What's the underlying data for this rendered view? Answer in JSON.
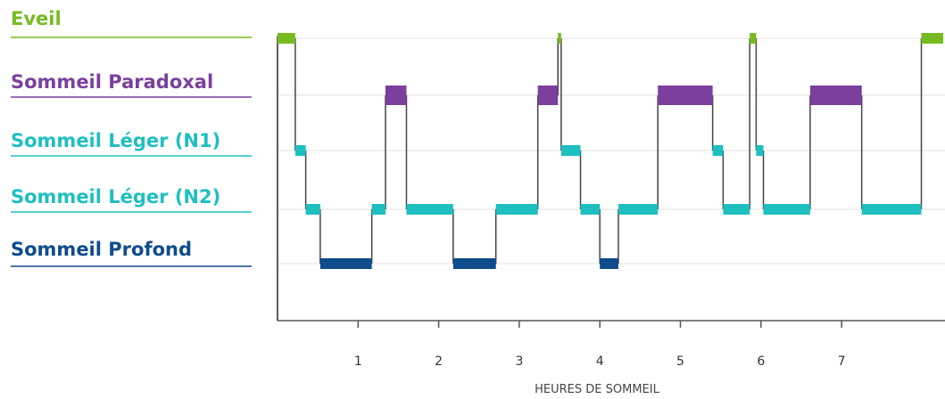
{
  "chart_data": {
    "type": "line",
    "title": "",
    "xlabel": "HEURES DE SOMMEIL",
    "ylabel": "",
    "xlim": [
      0,
      7.8
    ],
    "x_ticks": [
      "1",
      "2",
      "3",
      "4",
      "5",
      "6",
      "7"
    ],
    "grid": true,
    "stages": [
      {
        "name": "Eveil",
        "color": "#76bc21"
      },
      {
        "name": "Sommeil Paradoxal",
        "color": "#7b3f9e"
      },
      {
        "name": "Sommeil Léger (N1)",
        "color": "#1fbfc0"
      },
      {
        "name": "Sommeil Léger (N2)",
        "color": "#1fbfc0"
      },
      {
        "name": "Sommeil Profond",
        "color": "#0e4c8c"
      }
    ],
    "segments": [
      {
        "stage": 0,
        "start": 0.0,
        "end": 0.22
      },
      {
        "stage": 2,
        "start": 0.22,
        "end": 0.35
      },
      {
        "stage": 3,
        "start": 0.35,
        "end": 0.53
      },
      {
        "stage": 4,
        "start": 0.53,
        "end": 1.17
      },
      {
        "stage": 3,
        "start": 1.17,
        "end": 1.34
      },
      {
        "stage": 1,
        "start": 1.34,
        "end": 1.6
      },
      {
        "stage": 3,
        "start": 1.6,
        "end": 2.18
      },
      {
        "stage": 4,
        "start": 2.18,
        "end": 2.71
      },
      {
        "stage": 3,
        "start": 2.71,
        "end": 3.23
      },
      {
        "stage": 1,
        "start": 3.23,
        "end": 3.48
      },
      {
        "stage": 0,
        "start": 3.48,
        "end": 3.52
      },
      {
        "stage": 2,
        "start": 3.52,
        "end": 3.76
      },
      {
        "stage": 3,
        "start": 3.76,
        "end": 4.0
      },
      {
        "stage": 4,
        "start": 4.0,
        "end": 4.23
      },
      {
        "stage": 3,
        "start": 4.23,
        "end": 4.72
      },
      {
        "stage": 1,
        "start": 4.72,
        "end": 5.4
      },
      {
        "stage": 2,
        "start": 5.4,
        "end": 5.53
      },
      {
        "stage": 3,
        "start": 5.53,
        "end": 5.86
      },
      {
        "stage": 0,
        "start": 5.86,
        "end": 5.94
      },
      {
        "stage": 2,
        "start": 5.94,
        "end": 6.03
      },
      {
        "stage": 3,
        "start": 6.03,
        "end": 6.61
      },
      {
        "stage": 1,
        "start": 6.61,
        "end": 7.25
      },
      {
        "stage": 3,
        "start": 7.25,
        "end": 7.99
      },
      {
        "stage": 0,
        "start": 7.99,
        "end": 8.3
      }
    ]
  }
}
